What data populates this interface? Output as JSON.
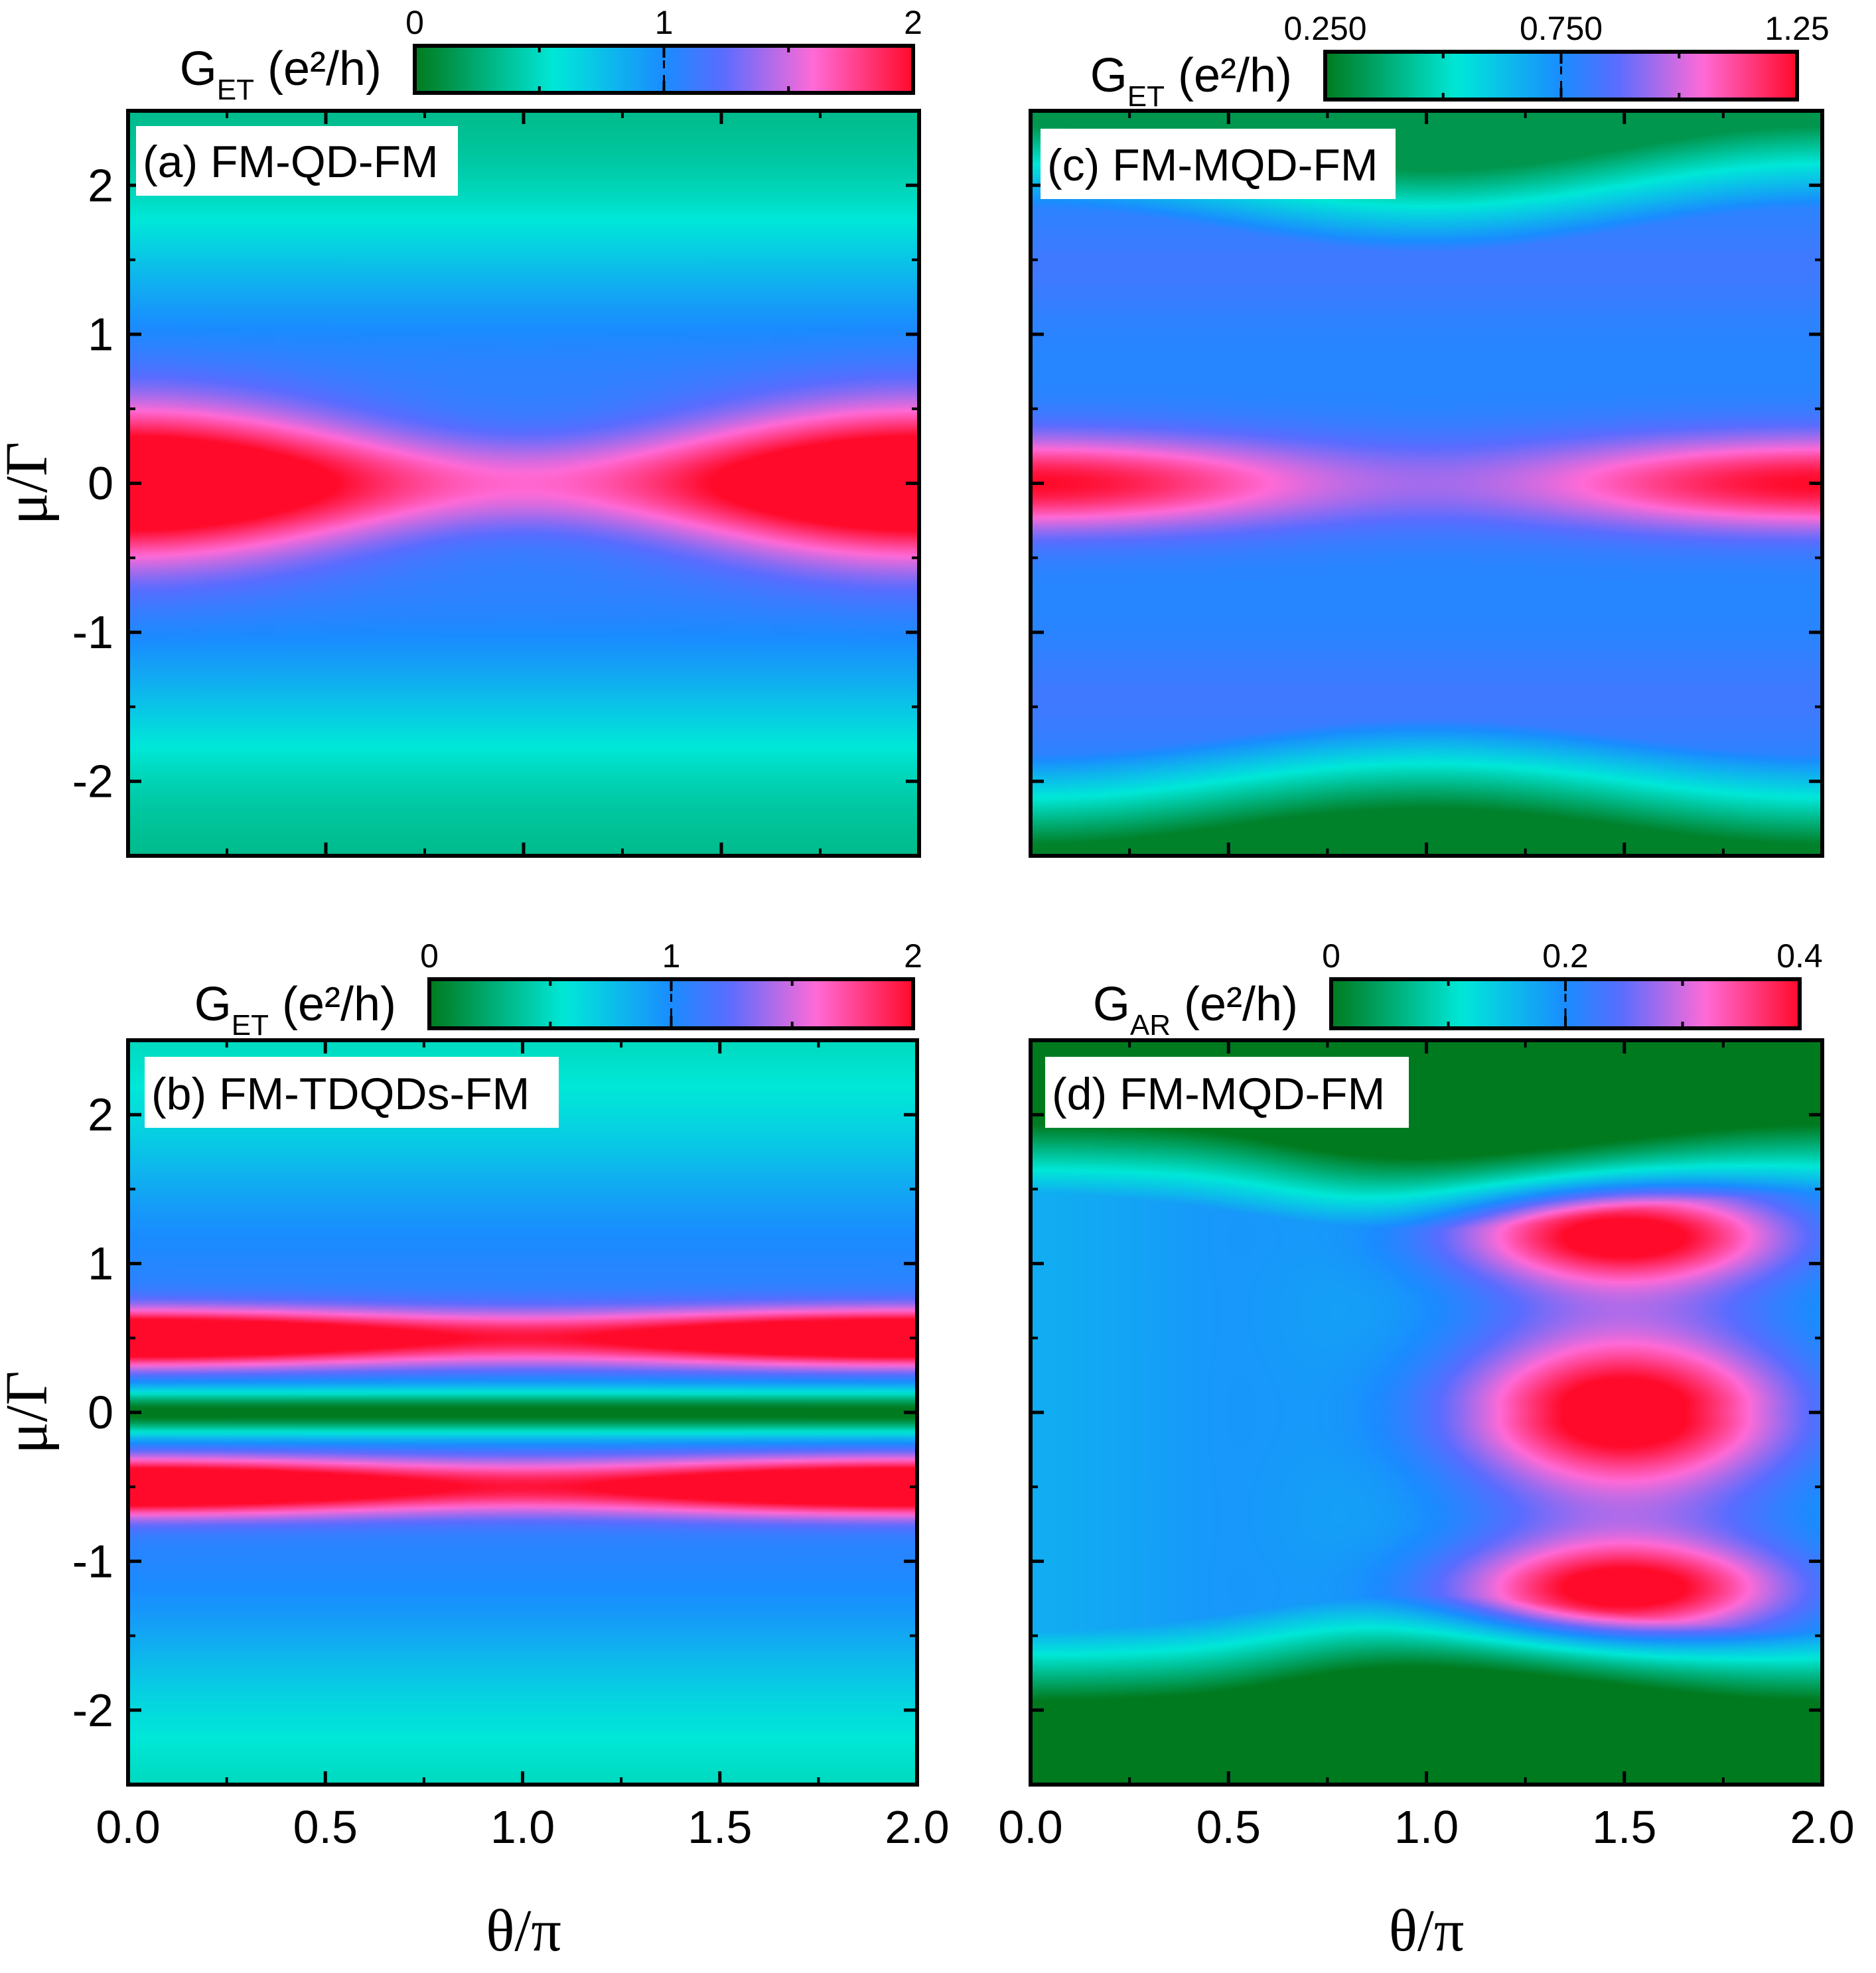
{
  "figure": {
    "xlabel": "θ/π",
    "ylabel": "μ/Γ"
  },
  "colormap": {
    "name": "green-cyan-blue-magenta-red",
    "stops": [
      "#007a1e",
      "#00e8d8",
      "#1a8cff",
      "#5a6cff",
      "#ff6ad6",
      "#ff0a2a"
    ]
  },
  "chart_data": [
    {
      "id": "a",
      "type": "heatmap",
      "title": "(a) FM-QD-FM",
      "model": "qd",
      "colorbar": {
        "symbol": "G",
        "subscript": "ET",
        "unit": " (e²/h)",
        "ticks": [
          "0",
          "1",
          "2"
        ],
        "range": [
          0,
          2
        ]
      },
      "x": {
        "label": "θ/π",
        "range": [
          0,
          2
        ],
        "ticks": [
          "0.0",
          "0.5",
          "1.0",
          "1.5",
          "2.0"
        ]
      },
      "y": {
        "label": "μ/Γ",
        "range": [
          -2.5,
          2.5
        ],
        "ticks": [
          "2",
          "1",
          "0",
          "-1",
          "-2"
        ]
      },
      "features": "Maximum 2 at μ=0 near θ=0 and θ=2; reduced (~1.5) at θ=1; minimum ~0.2 at |μ|>2"
    },
    {
      "id": "b",
      "type": "heatmap",
      "title": "(b) FM-TDQDs-FM",
      "model": "tdqd",
      "colorbar": {
        "symbol": "G",
        "subscript": "ET",
        "unit": " (e²/h)",
        "ticks": [
          "0",
          "1",
          "2"
        ],
        "range": [
          0,
          2
        ]
      },
      "x": {
        "label": "θ/π",
        "range": [
          0,
          2
        ],
        "ticks": [
          "0.0",
          "0.5",
          "1.0",
          "1.5",
          "2.0"
        ]
      },
      "y": {
        "label": "μ/Γ",
        "range": [
          -2.5,
          2.5
        ],
        "ticks": [
          "2",
          "1",
          "0",
          "-1",
          "-2"
        ]
      },
      "features": "Two resonance peaks (~2) at μ=±0.5 near θ=0,2; antiresonance (~0) at μ=0"
    },
    {
      "id": "c",
      "type": "heatmap",
      "title": "(c) FM-MQD-FM",
      "model": "mqd",
      "colorbar": {
        "symbol": "G",
        "subscript": "ET",
        "unit": " (e²/h)",
        "ticks": [
          "0.250",
          "0.750",
          "1.25"
        ],
        "range": [
          0.25,
          1.25
        ]
      },
      "x": {
        "label": "θ/π",
        "range": [
          0,
          2
        ],
        "ticks": [
          "0.0",
          "0.5",
          "1.0",
          "1.5",
          "2.0"
        ]
      },
      "y": {
        "label": "μ/Γ",
        "range": [
          -2.5,
          2.5
        ],
        "ticks": [
          "2",
          "1",
          "0",
          "-1",
          "-2"
        ]
      },
      "features": "Peak ~1.25 at μ=0 near θ=0,2; broad ~0.75 plateau for |μ|<2; minimum ~0.3 near μ=-2.3, θ=1"
    },
    {
      "id": "d",
      "type": "heatmap",
      "title": "(d) FM-MQD-FM",
      "model": "ar",
      "colorbar": {
        "symbol": "G",
        "subscript": "AR",
        "unit": " (e²/h)",
        "ticks": [
          "0",
          "0.2",
          "0.4"
        ],
        "range": [
          0,
          0.4
        ]
      },
      "x": {
        "label": "θ/π",
        "range": [
          0,
          2
        ],
        "ticks": [
          "0.0",
          "0.5",
          "1.0",
          "1.5",
          "2.0"
        ]
      },
      "y": {
        "label": "μ/Γ",
        "range": [
          -2.5,
          2.5
        ],
        "ticks": [
          "2",
          "1",
          "0",
          "-1",
          "-2"
        ]
      },
      "features": "Maxima ~0.4 at θ=1.5 for μ=+1.2, 0, -1.2; ~0.15 near θ=0.5; ~0 for |μ|>1.8"
    }
  ]
}
